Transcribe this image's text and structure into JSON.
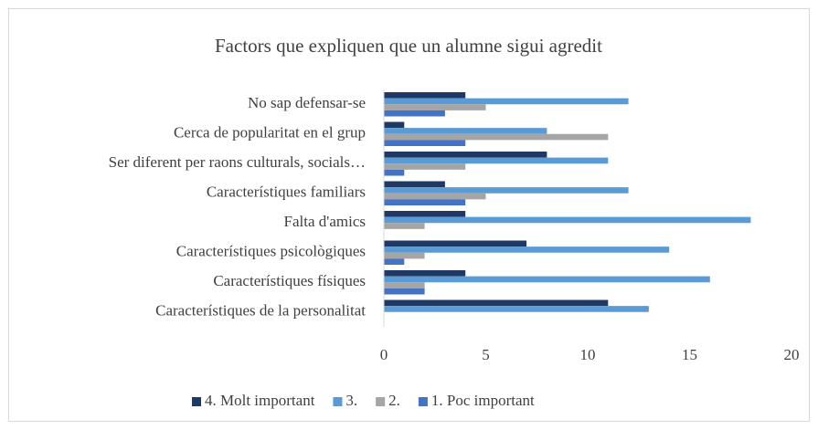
{
  "chart_data": {
    "type": "bar",
    "orientation": "horizontal",
    "title": "Factors que expliquen que un alumne sigui agredit",
    "categories": [
      "No sap defensar-se",
      "Cerca de popularitat en el grup",
      "Ser diferent per raons culturals, socials…",
      "Característiques familiars",
      "Falta d'amics",
      "Característiques psicològiques",
      "Característiques físiques",
      "Característiques de la personalitat"
    ],
    "series": [
      {
        "name": "4. Molt important",
        "color": "#203864",
        "values": [
          4,
          1,
          8,
          3,
          4,
          7,
          4,
          11
        ]
      },
      {
        "name": "3.",
        "color": "#5b9bd5",
        "values": [
          12,
          8,
          11,
          12,
          18,
          14,
          16,
          13
        ]
      },
      {
        "name": "2.",
        "color": "#a5a5a5",
        "values": [
          5,
          11,
          4,
          5,
          2,
          2,
          2,
          0
        ]
      },
      {
        "name": "1. Poc important",
        "color": "#4472c4",
        "values": [
          3,
          4,
          1,
          4,
          0,
          1,
          2,
          0
        ]
      }
    ],
    "xlim": [
      0,
      20
    ],
    "xticks": [
      0,
      5,
      10,
      15,
      20
    ],
    "grid": false,
    "legend": "bottom"
  }
}
